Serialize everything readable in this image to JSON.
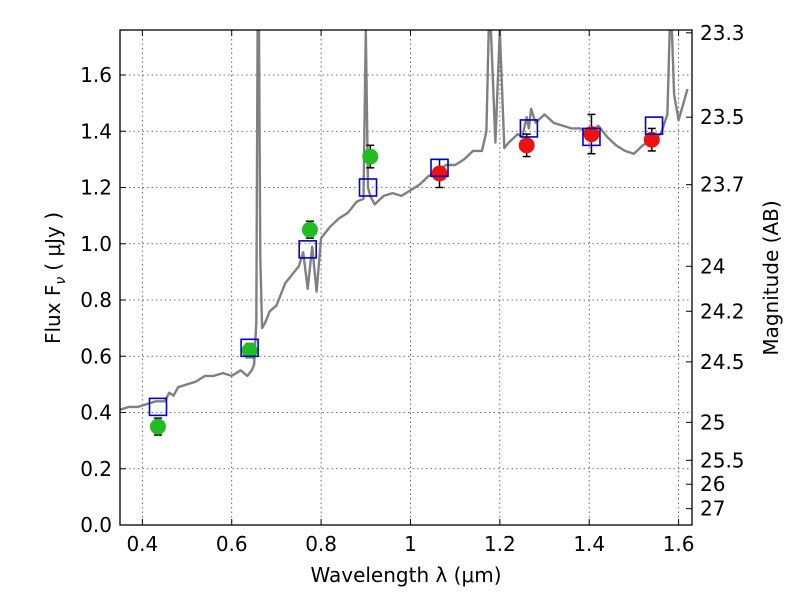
{
  "chart_data": {
    "type": "scatter",
    "xlabel": "Wavelength  λ (μm)",
    "ylabel": "Flux  F",
    "ylabel_sub": "ν",
    "ylabel_units": "( μJy )",
    "y2label": "Magnitude (AB)",
    "xlim": [
      0.35,
      1.63
    ],
    "ylim": [
      0.0,
      1.76
    ],
    "grid": true,
    "x_ticks": [
      0.4,
      0.6,
      0.8,
      1.0,
      1.2,
      1.4,
      1.6
    ],
    "x_tick_labels": [
      "0.4",
      "0.6",
      "0.8",
      "1",
      "1.2",
      "1.4",
      "1.6"
    ],
    "y_ticks": [
      0.0,
      0.2,
      0.4,
      0.6,
      0.8,
      1.0,
      1.2,
      1.4,
      1.6
    ],
    "y_tick_labels": [
      "0.0",
      "0.2",
      "0.4",
      "0.6",
      "0.8",
      "1.0",
      "1.2",
      "1.4",
      "1.6"
    ],
    "y2_ticks": [
      {
        "label": "23.3",
        "flux": 1.75
      },
      {
        "label": "23.5",
        "flux": 1.45
      },
      {
        "label": "23.7",
        "flux": 1.21
      },
      {
        "label": "24",
        "flux": 0.92
      },
      {
        "label": "24.2",
        "flux": 0.76
      },
      {
        "label": "24.5",
        "flux": 0.58
      },
      {
        "label": "25",
        "flux": 0.365
      },
      {
        "label": "25.5",
        "flux": 0.23
      },
      {
        "label": "26",
        "flux": 0.145
      },
      {
        "label": "27",
        "flux": 0.058
      }
    ],
    "colors": {
      "model": "#808080",
      "green_points": "#22bb22",
      "red_points": "#ee1111",
      "model_photometry": "#0000cc",
      "grid": "#444444"
    },
    "series": [
      {
        "marker": "line",
        "color": "#808080",
        "x": [
          0.35,
          0.37,
          0.39,
          0.41,
          0.43,
          0.45,
          0.46,
          0.47,
          0.48,
          0.5,
          0.52,
          0.54,
          0.56,
          0.58,
          0.6,
          0.62,
          0.635,
          0.645,
          0.65,
          0.655,
          0.658,
          0.661,
          0.664,
          0.668,
          0.675,
          0.685,
          0.7,
          0.72,
          0.74,
          0.75,
          0.76,
          0.77,
          0.78,
          0.79,
          0.8,
          0.82,
          0.84,
          0.86,
          0.88,
          0.895,
          0.9,
          0.905,
          0.91,
          0.92,
          0.94,
          0.96,
          0.98,
          1.0,
          1.02,
          1.04,
          1.06,
          1.08,
          1.1,
          1.12,
          1.14,
          1.16,
          1.17,
          1.175,
          1.18,
          1.19,
          1.2,
          1.21,
          1.22,
          1.24,
          1.25,
          1.26,
          1.265,
          1.27,
          1.28,
          1.3,
          1.32,
          1.34,
          1.36,
          1.38,
          1.4,
          1.42,
          1.44,
          1.46,
          1.48,
          1.5,
          1.52,
          1.54,
          1.56,
          1.575,
          1.58,
          1.585,
          1.59,
          1.6,
          1.62
        ],
        "y": [
          0.41,
          0.42,
          0.42,
          0.43,
          0.44,
          0.44,
          0.47,
          0.46,
          0.49,
          0.5,
          0.51,
          0.53,
          0.53,
          0.54,
          0.53,
          0.55,
          0.53,
          0.55,
          0.57,
          0.72,
          1.76,
          1.76,
          0.95,
          0.7,
          0.72,
          0.76,
          0.78,
          0.86,
          0.9,
          0.92,
          0.97,
          0.84,
          0.99,
          0.83,
          1.02,
          1.06,
          1.09,
          1.11,
          1.15,
          1.16,
          1.76,
          1.2,
          1.17,
          1.14,
          1.17,
          1.18,
          1.17,
          1.19,
          1.21,
          1.24,
          1.26,
          1.28,
          1.28,
          1.3,
          1.33,
          1.33,
          1.4,
          1.76,
          1.76,
          1.36,
          1.76,
          1.34,
          1.36,
          1.39,
          1.38,
          1.45,
          1.41,
          1.48,
          1.43,
          1.46,
          1.43,
          1.42,
          1.41,
          1.41,
          1.39,
          1.42,
          1.38,
          1.35,
          1.33,
          1.32,
          1.35,
          1.37,
          1.39,
          1.46,
          1.76,
          1.76,
          1.53,
          1.44,
          1.55
        ]
      },
      {
        "marker": "circle",
        "color": "#22bb22",
        "x": [
          0.435,
          0.64,
          0.775,
          0.91
        ],
        "y": [
          0.35,
          0.62,
          1.05,
          1.31
        ],
        "yerr": [
          0.03,
          0.025,
          0.03,
          0.04
        ]
      },
      {
        "marker": "circle",
        "color": "#ee1111",
        "x": [
          1.065,
          1.26,
          1.405,
          1.54
        ],
        "y": [
          1.25,
          1.35,
          1.39,
          1.37
        ],
        "yerr": [
          0.05,
          0.04,
          0.07,
          0.04
        ]
      },
      {
        "marker": "square",
        "color": "#0000cc",
        "x": [
          0.435,
          0.64,
          0.77,
          0.905,
          1.065,
          1.265,
          1.405,
          1.545
        ],
        "y": [
          0.42,
          0.63,
          0.98,
          1.2,
          1.27,
          1.41,
          1.38,
          1.42
        ]
      }
    ]
  }
}
